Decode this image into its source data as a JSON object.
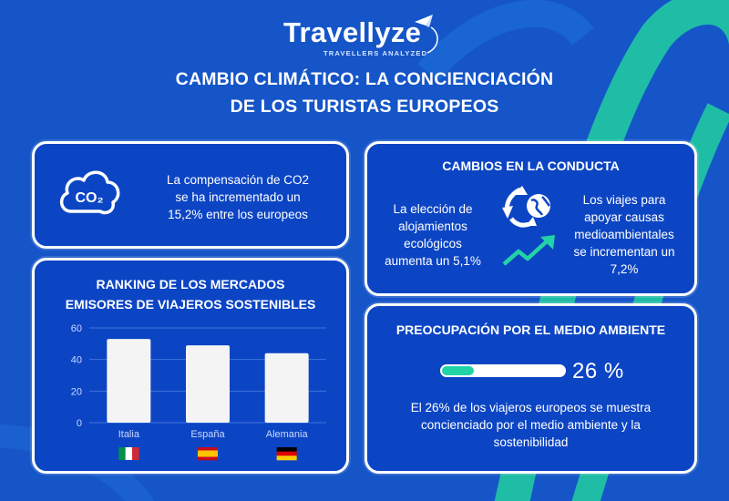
{
  "logo": {
    "name": "Travellyze",
    "tagline": "TRAVELLERS ANALYZED"
  },
  "title": {
    "line1": "CAMBIO CLIMÁTICO: LA CONCIENCIACIÓN",
    "line2": "DE LOS TURISTAS EUROPEOS"
  },
  "co2_card": {
    "icon_label": "CO₂",
    "text": [
      "La compensación de CO2",
      "se ha incrementado un",
      "15,2% entre los europeos"
    ]
  },
  "cambios_card": {
    "title": "CAMBIOS EN LA CONDUCTA",
    "left_text": [
      "La elección de",
      "alojamientos",
      "ecológicos",
      "aumenta un 5,1%"
    ],
    "right_text": [
      "Los viajes para",
      "apoyar causas",
      "medioambientales",
      "se incrementan un",
      "7,2%"
    ]
  },
  "ranking_card": {
    "title_line1": "RANKING DE LOS MERCADOS",
    "title_line2": "EMISORES DE VIAJEROS SOSTENIBLES"
  },
  "chart_data": {
    "type": "bar",
    "categories": [
      "Italia",
      "España",
      "Alemania"
    ],
    "values": [
      53,
      49,
      44
    ],
    "ylim": [
      0,
      60
    ],
    "yticks": [
      "0",
      "20",
      "40",
      "60"
    ],
    "grid": true,
    "bar_color": "#f4f4f4",
    "flags": [
      {
        "country": "Italia",
        "colors": [
          "#009246",
          "#ffffff",
          "#ce2b37"
        ],
        "orientation": "vertical"
      },
      {
        "country": "España",
        "colors": [
          "#c60b1e",
          "#ffc400",
          "#c60b1e"
        ],
        "orientation": "horizontal"
      },
      {
        "country": "Alemania",
        "colors": [
          "#000000",
          "#dd0000",
          "#ffce00"
        ],
        "orientation": "horizontal"
      }
    ]
  },
  "preocupacion_card": {
    "title": "PREOCUPACIÓN POR EL MEDIO AMBIENTE",
    "progress_fraction": 0.26,
    "progress_label": "26 %",
    "text": [
      "El 26% de los viajeros europeos se muestra",
      "concienciado por el medio ambiente y la",
      "sostenibilidad"
    ]
  },
  "colors": {
    "background": "#1555c8",
    "card": "#0c45c4",
    "accent": "#22d3a6",
    "text": "#ffffff"
  },
  "icons": [
    "cloud-co2-icon",
    "recycle-globe-icon",
    "trend-up-arrow-icon",
    "paper-plane-icon"
  ]
}
